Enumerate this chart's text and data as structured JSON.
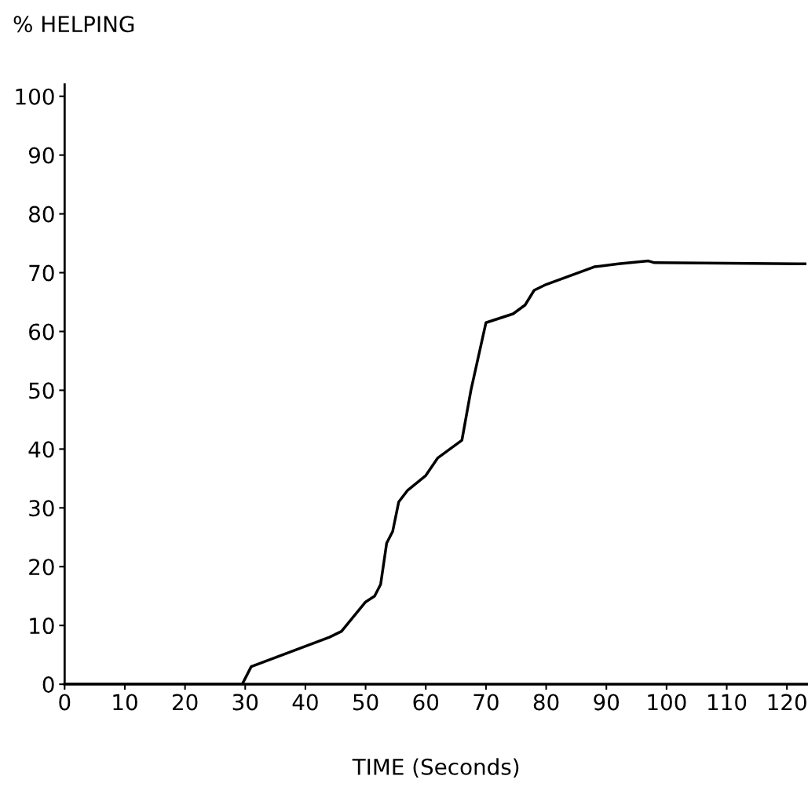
{
  "chart_data": {
    "type": "line",
    "ylabel": "% HELPING",
    "xlabel": "TIME (Seconds)",
    "x": [
      0,
      29.5,
      31,
      44,
      46,
      50,
      51.5,
      52.5,
      53.5,
      54.5,
      55.5,
      57,
      60,
      62,
      66,
      67.5,
      70,
      74.5,
      76.5,
      78,
      80,
      88,
      92,
      97,
      98,
      123
    ],
    "series": [
      {
        "color": "#000000",
        "values": [
          0,
          0,
          3,
          8,
          9,
          14,
          15,
          17,
          24,
          26,
          31,
          33,
          35.5,
          38.5,
          41.5,
          50,
          61.5,
          63,
          64.5,
          67,
          68,
          71,
          71.5,
          72,
          71.7,
          71.5
        ]
      }
    ],
    "xlim": [
      0,
      123.5
    ],
    "ylim": [
      0,
      102
    ],
    "xticks": [
      0,
      10,
      20,
      30,
      40,
      50,
      60,
      70,
      80,
      90,
      100,
      110,
      120
    ],
    "yticks": [
      0,
      10,
      20,
      30,
      40,
      50,
      60,
      70,
      80,
      90,
      100
    ],
    "grid": false,
    "legend": false,
    "marker": "none",
    "line_style": "solid"
  }
}
